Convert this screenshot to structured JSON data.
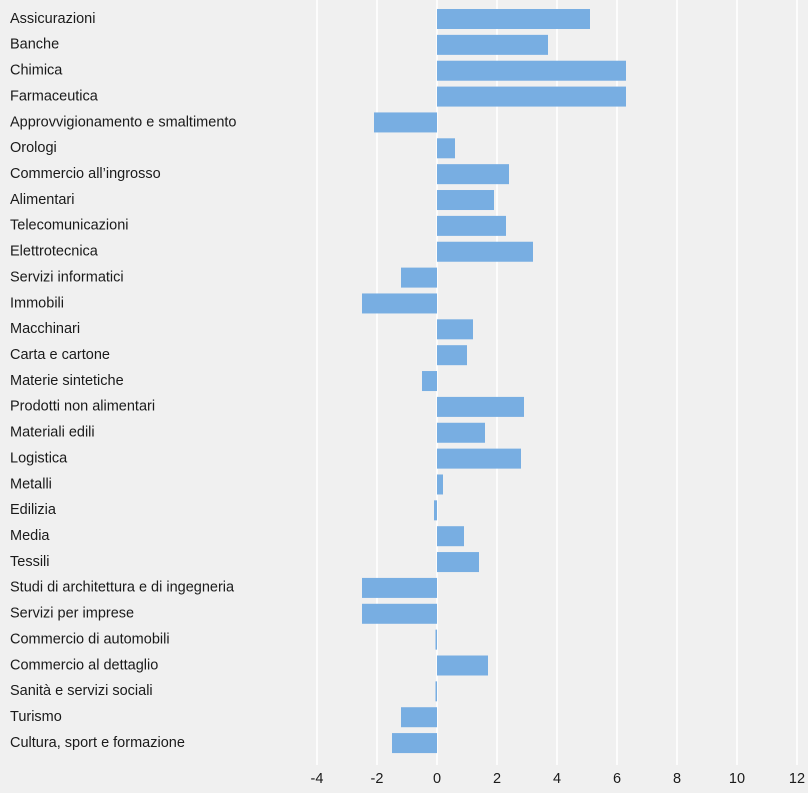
{
  "chart_data": {
    "type": "barh",
    "categories": [
      "Assicurazioni",
      "Banche",
      "Chimica",
      "Farmaceutica",
      "Approvvigionamento e smaltimento",
      "Orologi",
      "Commercio all’ingrosso",
      "Alimentari",
      "Telecomunicazioni",
      "Elettrotecnica",
      "Servizi informatici",
      "Immobili",
      "Macchinari",
      "Carta e cartone",
      "Materie sintetiche",
      "Prodotti non alimentari",
      "Materiali edili",
      "Logistica",
      "Metalli",
      "Edilizia",
      "Media",
      "Tessili",
      "Studi di architettura e di ingegneria",
      "Servizi per imprese",
      "Commercio di automobili",
      "Commercio al dettaglio",
      "Sanità e servizi sociali",
      "Turismo",
      "Cultura, sport e formazione"
    ],
    "values": [
      5.1,
      3.7,
      6.3,
      6.3,
      -2.1,
      0.6,
      2.4,
      1.9,
      2.3,
      3.2,
      -1.2,
      -2.5,
      1.2,
      1.0,
      -0.5,
      2.9,
      1.6,
      2.8,
      0.2,
      -0.1,
      0.9,
      1.4,
      -2.5,
      -2.5,
      -0.05,
      1.7,
      -0.05,
      -1.2,
      -1.5
    ],
    "color": "#78aee2",
    "xlim": [
      -4,
      12
    ],
    "xticks": [
      -4,
      -2,
      0,
      2,
      4,
      6,
      8,
      10,
      12
    ],
    "grid": true
  }
}
